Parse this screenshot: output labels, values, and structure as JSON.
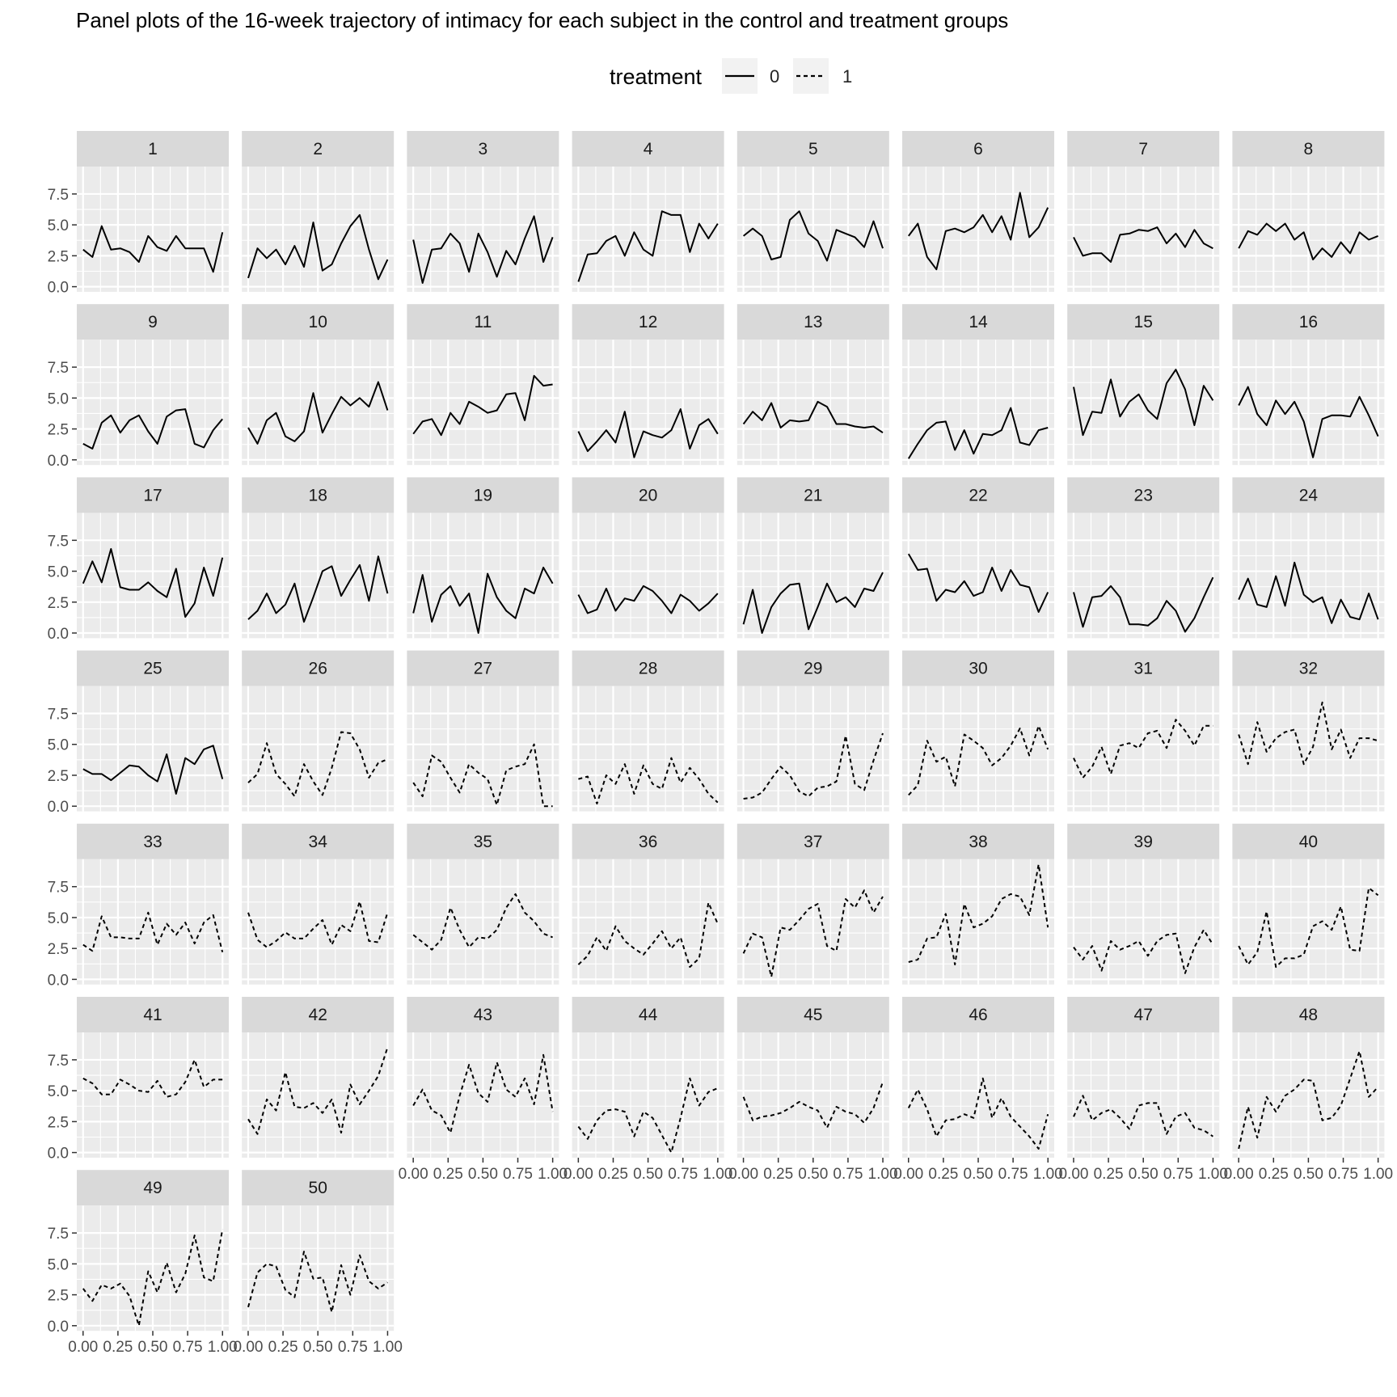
{
  "chart_data": {
    "type": "line",
    "title": "Panel plots of the 16-week trajectory of intimacy for each subject in the control and treatment groups",
    "legend": {
      "title": "treatment",
      "position": "top",
      "entries": [
        {
          "label": "0",
          "linetype": "solid"
        },
        {
          "label": "1",
          "linetype": "dashed"
        }
      ]
    },
    "x": [
      0,
      0.0667,
      0.1333,
      0.2,
      0.2667,
      0.3333,
      0.4,
      0.4667,
      0.5333,
      0.6,
      0.6667,
      0.7333,
      0.8,
      0.8667,
      0.9333,
      1.0
    ],
    "xlim": [
      0,
      1
    ],
    "ylim": [
      0,
      9.3
    ],
    "x_tick_values": [
      0,
      0.25,
      0.5,
      0.75,
      1.0
    ],
    "x_tick_labels": [
      "0.00",
      "0.25",
      "0.50",
      "0.75",
      "1.00"
    ],
    "y_tick_values": [
      0,
      2.5,
      5,
      7.5
    ],
    "y_tick_labels": [
      "0.0",
      "2.5",
      "5.0",
      "7.5"
    ],
    "grid": true,
    "panels": [
      {
        "label": "1",
        "treatment": 0,
        "values": [
          3.0,
          2.4,
          4.9,
          3.0,
          3.1,
          2.8,
          2.0,
          4.1,
          3.2,
          2.9,
          4.1,
          3.1,
          3.1,
          3.1,
          1.2,
          4.4
        ]
      },
      {
        "label": "2",
        "treatment": 0,
        "values": [
          0.7,
          3.1,
          2.3,
          3.0,
          1.8,
          3.3,
          1.6,
          5.2,
          1.3,
          1.8,
          3.5,
          4.9,
          5.8,
          3.0,
          0.6,
          2.2
        ]
      },
      {
        "label": "3",
        "treatment": 0,
        "values": [
          3.8,
          0.3,
          3.0,
          3.1,
          4.3,
          3.5,
          1.2,
          4.3,
          2.8,
          0.8,
          2.9,
          1.8,
          3.9,
          5.7,
          2.0,
          4.0
        ]
      },
      {
        "label": "4",
        "treatment": 0,
        "values": [
          0.4,
          2.6,
          2.7,
          3.7,
          4.1,
          2.5,
          4.4,
          3.0,
          2.5,
          6.1,
          5.8,
          5.8,
          2.8,
          5.1,
          3.9,
          5.1
        ]
      },
      {
        "label": "5",
        "treatment": 0,
        "values": [
          4.1,
          4.7,
          4.1,
          2.2,
          2.4,
          5.4,
          6.1,
          4.3,
          3.7,
          2.1,
          4.6,
          4.3,
          4.0,
          3.2,
          5.3,
          3.1
        ]
      },
      {
        "label": "6",
        "treatment": 0,
        "values": [
          4.1,
          5.1,
          2.4,
          1.4,
          4.5,
          4.7,
          4.4,
          4.8,
          5.8,
          4.4,
          5.7,
          3.8,
          7.6,
          4.0,
          4.8,
          6.4
        ]
      },
      {
        "label": "7",
        "treatment": 0,
        "values": [
          4.0,
          2.5,
          2.7,
          2.7,
          2.0,
          4.2,
          4.3,
          4.6,
          4.5,
          4.8,
          3.5,
          4.3,
          3.2,
          4.6,
          3.5,
          3.1
        ]
      },
      {
        "label": "8",
        "treatment": 0,
        "values": [
          3.1,
          4.5,
          4.2,
          5.1,
          4.5,
          5.1,
          3.8,
          4.4,
          2.2,
          3.1,
          2.4,
          3.6,
          2.7,
          4.4,
          3.8,
          4.1
        ]
      },
      {
        "label": "9",
        "treatment": 0,
        "values": [
          1.3,
          0.9,
          3.0,
          3.6,
          2.2,
          3.2,
          3.6,
          2.3,
          1.3,
          3.5,
          4.0,
          4.1,
          1.3,
          1.0,
          2.4,
          3.3
        ]
      },
      {
        "label": "10",
        "treatment": 0,
        "values": [
          2.6,
          1.3,
          3.2,
          3.8,
          1.9,
          1.5,
          2.3,
          5.4,
          2.2,
          3.7,
          5.1,
          4.4,
          5.0,
          4.3,
          6.3,
          4.0
        ]
      },
      {
        "label": "11",
        "treatment": 0,
        "values": [
          2.1,
          3.1,
          3.3,
          2.0,
          3.8,
          2.9,
          4.7,
          4.3,
          3.8,
          4.0,
          5.3,
          5.4,
          3.2,
          6.8,
          6.0,
          6.1
        ]
      },
      {
        "label": "12",
        "treatment": 0,
        "values": [
          2.3,
          0.7,
          1.5,
          2.4,
          1.4,
          3.9,
          0.2,
          2.3,
          2.0,
          1.8,
          2.4,
          4.1,
          0.9,
          2.8,
          3.3,
          2.1
        ]
      },
      {
        "label": "13",
        "treatment": 0,
        "values": [
          2.9,
          3.9,
          3.2,
          4.6,
          2.6,
          3.2,
          3.1,
          3.2,
          4.7,
          4.3,
          2.9,
          2.9,
          2.7,
          2.6,
          2.7,
          2.2
        ]
      },
      {
        "label": "14",
        "treatment": 0,
        "values": [
          0.1,
          1.3,
          2.4,
          3.0,
          3.1,
          0.8,
          2.4,
          0.5,
          2.1,
          2.0,
          2.4,
          4.2,
          1.4,
          1.2,
          2.4,
          2.6
        ]
      },
      {
        "label": "15",
        "treatment": 0,
        "values": [
          5.9,
          2.0,
          3.9,
          3.8,
          6.5,
          3.5,
          4.7,
          5.3,
          4.0,
          3.3,
          6.2,
          7.3,
          5.7,
          2.8,
          6.0,
          4.8
        ]
      },
      {
        "label": "16",
        "treatment": 0,
        "values": [
          4.4,
          5.9,
          3.7,
          2.8,
          4.8,
          3.7,
          4.7,
          3.1,
          0.2,
          3.3,
          3.6,
          3.6,
          3.5,
          5.1,
          3.6,
          1.9
        ]
      },
      {
        "label": "17",
        "treatment": 0,
        "values": [
          4.0,
          5.8,
          4.1,
          6.8,
          3.7,
          3.5,
          3.5,
          4.1,
          3.4,
          2.9,
          5.2,
          1.3,
          2.4,
          5.3,
          3.0,
          6.1
        ]
      },
      {
        "label": "18",
        "treatment": 0,
        "values": [
          1.1,
          1.8,
          3.2,
          1.6,
          2.3,
          4.0,
          0.9,
          2.9,
          5.0,
          5.4,
          3.0,
          4.3,
          5.5,
          2.6,
          6.2,
          3.2
        ]
      },
      {
        "label": "19",
        "treatment": 0,
        "values": [
          1.6,
          4.7,
          0.9,
          3.1,
          3.8,
          2.2,
          3.2,
          0.0,
          4.8,
          2.9,
          1.8,
          1.2,
          3.6,
          3.2,
          5.3,
          4.0
        ]
      },
      {
        "label": "20",
        "treatment": 0,
        "values": [
          3.1,
          1.6,
          1.9,
          3.6,
          1.8,
          2.8,
          2.6,
          3.8,
          3.4,
          2.6,
          1.6,
          3.1,
          2.6,
          1.8,
          2.4,
          3.2
        ]
      },
      {
        "label": "21",
        "treatment": 0,
        "values": [
          0.7,
          3.5,
          0.0,
          2.1,
          3.2,
          3.9,
          4.0,
          0.3,
          2.1,
          4.0,
          2.5,
          2.9,
          2.1,
          3.6,
          3.4,
          4.9
        ]
      },
      {
        "label": "22",
        "treatment": 0,
        "values": [
          6.4,
          5.1,
          5.2,
          2.6,
          3.5,
          3.3,
          4.2,
          3.0,
          3.3,
          5.3,
          3.4,
          5.1,
          3.9,
          3.7,
          1.7,
          3.3
        ]
      },
      {
        "label": "23",
        "treatment": 0,
        "values": [
          3.3,
          0.5,
          2.9,
          3.0,
          3.8,
          2.9,
          0.7,
          0.7,
          0.6,
          1.2,
          2.6,
          1.8,
          0.1,
          1.2,
          2.9,
          4.5
        ]
      },
      {
        "label": "24",
        "treatment": 0,
        "values": [
          2.7,
          4.4,
          2.3,
          2.1,
          4.6,
          2.2,
          5.7,
          3.1,
          2.5,
          2.9,
          0.8,
          2.7,
          1.3,
          1.1,
          3.2,
          1.1
        ]
      },
      {
        "label": "25",
        "treatment": 0,
        "values": [
          3.0,
          2.6,
          2.6,
          2.1,
          2.7,
          3.3,
          3.2,
          2.5,
          2.0,
          4.2,
          1.0,
          3.9,
          3.4,
          4.6,
          4.9,
          2.2
        ]
      },
      {
        "label": "26",
        "treatment": 1,
        "values": [
          1.9,
          2.6,
          5.1,
          2.6,
          1.8,
          0.8,
          3.4,
          2.0,
          0.9,
          3.1,
          6.0,
          5.9,
          4.6,
          2.3,
          3.5,
          3.8
        ]
      },
      {
        "label": "27",
        "treatment": 1,
        "values": [
          1.9,
          0.8,
          4.1,
          3.6,
          2.3,
          1.1,
          3.4,
          2.7,
          2.2,
          0.1,
          2.9,
          3.2,
          3.4,
          5.0,
          0.0,
          0.0
        ]
      },
      {
        "label": "28",
        "treatment": 1,
        "values": [
          2.2,
          2.4,
          0.2,
          2.5,
          1.8,
          3.4,
          1.0,
          3.3,
          1.8,
          1.4,
          3.9,
          1.9,
          3.1,
          2.2,
          1.0,
          0.3
        ]
      },
      {
        "label": "29",
        "treatment": 1,
        "values": [
          0.6,
          0.7,
          1.1,
          2.2,
          3.2,
          2.5,
          1.2,
          0.8,
          1.5,
          1.6,
          2.0,
          5.7,
          1.8,
          1.3,
          3.7,
          5.9
        ]
      },
      {
        "label": "30",
        "treatment": 1,
        "values": [
          0.9,
          1.7,
          5.3,
          3.6,
          4.0,
          1.6,
          5.8,
          5.3,
          4.7,
          3.3,
          3.9,
          4.9,
          6.3,
          4.1,
          6.5,
          4.6
        ]
      },
      {
        "label": "31",
        "treatment": 1,
        "values": [
          3.9,
          2.3,
          3.2,
          4.8,
          2.6,
          4.9,
          5.1,
          4.7,
          5.9,
          6.1,
          4.7,
          7.0,
          6.1,
          4.9,
          6.5,
          6.5
        ]
      },
      {
        "label": "32",
        "treatment": 1,
        "values": [
          5.8,
          3.4,
          6.8,
          4.4,
          5.5,
          6.0,
          6.2,
          3.4,
          4.8,
          8.4,
          4.6,
          6.2,
          3.9,
          5.5,
          5.5,
          5.3
        ]
      },
      {
        "label": "33",
        "treatment": 1,
        "values": [
          2.8,
          2.3,
          5.1,
          3.4,
          3.4,
          3.3,
          3.3,
          5.4,
          2.8,
          4.5,
          3.6,
          4.6,
          2.9,
          4.6,
          5.2,
          2.2
        ]
      },
      {
        "label": "34",
        "treatment": 1,
        "values": [
          5.4,
          3.2,
          2.6,
          3.1,
          3.8,
          3.3,
          3.3,
          4.1,
          4.8,
          2.8,
          4.4,
          3.9,
          6.3,
          3.1,
          3.0,
          5.4
        ]
      },
      {
        "label": "35",
        "treatment": 1,
        "values": [
          3.6,
          3.0,
          2.4,
          3.2,
          5.8,
          4.0,
          2.6,
          3.4,
          3.3,
          4.0,
          5.8,
          6.9,
          5.4,
          4.7,
          3.7,
          3.4
        ]
      },
      {
        "label": "36",
        "treatment": 1,
        "values": [
          1.2,
          1.9,
          3.4,
          2.3,
          4.3,
          3.1,
          2.5,
          2.0,
          2.9,
          3.9,
          2.5,
          3.4,
          1.0,
          1.7,
          6.2,
          4.5
        ]
      },
      {
        "label": "37",
        "treatment": 1,
        "values": [
          2.1,
          3.7,
          3.4,
          0.2,
          4.2,
          4.0,
          4.8,
          5.7,
          6.1,
          2.7,
          2.3,
          6.5,
          5.8,
          7.2,
          5.4,
          6.7
        ]
      },
      {
        "label": "38",
        "treatment": 1,
        "values": [
          1.4,
          1.6,
          3.3,
          3.4,
          5.3,
          1.2,
          6.1,
          4.2,
          4.5,
          5.1,
          6.5,
          6.9,
          6.7,
          5.2,
          9.3,
          4.2
        ]
      },
      {
        "label": "39",
        "treatment": 1,
        "values": [
          2.6,
          1.6,
          2.7,
          0.7,
          3.1,
          2.4,
          2.7,
          3.1,
          1.9,
          3.1,
          3.6,
          3.7,
          0.5,
          2.6,
          4.0,
          2.8
        ]
      },
      {
        "label": "40",
        "treatment": 1,
        "values": [
          2.7,
          1.2,
          2.2,
          5.5,
          1.0,
          1.7,
          1.7,
          2.0,
          4.3,
          4.7,
          4.0,
          5.9,
          2.4,
          2.3,
          7.4,
          6.8
        ]
      },
      {
        "label": "41",
        "treatment": 1,
        "values": [
          6.0,
          5.6,
          4.7,
          4.7,
          5.9,
          5.5,
          5.0,
          4.9,
          5.8,
          4.5,
          4.7,
          5.7,
          7.5,
          5.3,
          5.9,
          5.9
        ]
      },
      {
        "label": "42",
        "treatment": 1,
        "values": [
          2.7,
          1.5,
          4.3,
          3.4,
          6.5,
          3.7,
          3.6,
          4.0,
          3.2,
          4.3,
          1.6,
          5.5,
          3.9,
          5.0,
          6.2,
          8.5
        ]
      },
      {
        "label": "43",
        "treatment": 1,
        "values": [
          3.8,
          5.1,
          3.4,
          3.0,
          1.6,
          4.6,
          7.1,
          4.8,
          4.1,
          7.3,
          5.1,
          4.5,
          6.0,
          3.9,
          7.9,
          3.3
        ]
      },
      {
        "label": "44",
        "treatment": 1,
        "values": [
          2.1,
          1.1,
          2.6,
          3.4,
          3.5,
          3.3,
          1.3,
          3.3,
          2.8,
          1.4,
          0.0,
          2.8,
          6.0,
          3.8,
          4.9,
          5.2
        ]
      },
      {
        "label": "45",
        "treatment": 1,
        "values": [
          4.5,
          2.6,
          2.9,
          3.0,
          3.2,
          3.6,
          4.1,
          3.7,
          3.4,
          2.0,
          3.7,
          3.3,
          3.1,
          2.4,
          3.6,
          5.7
        ]
      },
      {
        "label": "46",
        "treatment": 1,
        "values": [
          3.6,
          5.1,
          3.5,
          1.3,
          2.6,
          2.7,
          3.1,
          2.8,
          6.0,
          2.8,
          4.4,
          2.9,
          2.1,
          1.3,
          0.3,
          3.1
        ]
      },
      {
        "label": "47",
        "treatment": 1,
        "values": [
          2.9,
          4.6,
          2.6,
          3.2,
          3.5,
          2.8,
          1.9,
          3.8,
          4.0,
          4.0,
          1.5,
          2.9,
          3.2,
          2.0,
          1.8,
          1.3
        ]
      },
      {
        "label": "48",
        "treatment": 1,
        "values": [
          0.3,
          3.7,
          1.2,
          4.5,
          3.3,
          4.6,
          5.1,
          5.9,
          5.8,
          2.6,
          2.8,
          3.8,
          6.0,
          8.2,
          4.5,
          5.3
        ]
      },
      {
        "label": "49",
        "treatment": 1,
        "values": [
          3.0,
          2.0,
          3.3,
          3.0,
          3.4,
          2.4,
          0.0,
          4.4,
          2.7,
          5.1,
          2.7,
          4.2,
          7.3,
          3.9,
          3.6,
          7.8
        ]
      },
      {
        "label": "50",
        "treatment": 1,
        "values": [
          1.5,
          4.3,
          5.0,
          4.8,
          2.9,
          2.3,
          6.0,
          3.8,
          3.9,
          1.1,
          4.9,
          2.5,
          5.7,
          3.6,
          3.0,
          3.5
        ]
      }
    ]
  }
}
